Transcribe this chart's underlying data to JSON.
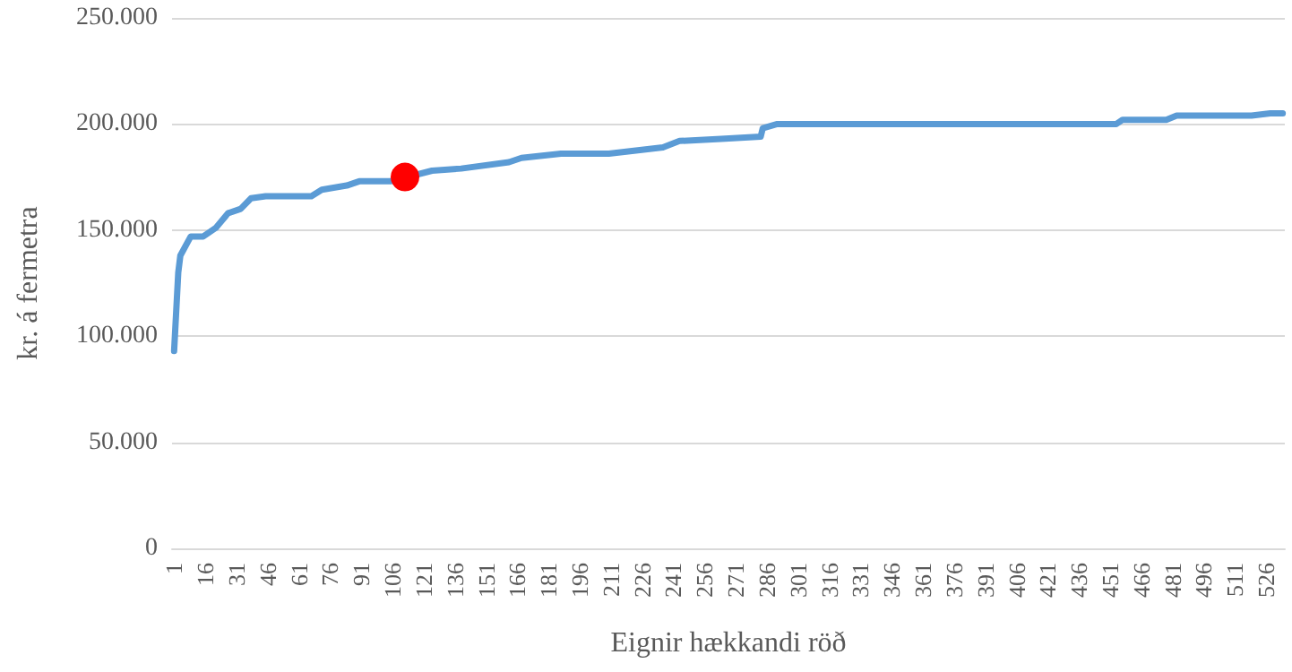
{
  "chart_data": {
    "type": "line",
    "xlabel": "Eignir hækkandi röð",
    "ylabel": "kr. á fermetra",
    "xlim": [
      0,
      535
    ],
    "xticks": [
      1,
      16,
      31,
      46,
      61,
      76,
      91,
      106,
      121,
      136,
      151,
      166,
      181,
      196,
      211,
      226,
      241,
      256,
      271,
      286,
      301,
      316,
      331,
      346,
      361,
      376,
      391,
      406,
      421,
      436,
      451,
      466,
      481,
      496,
      511,
      526
    ],
    "ylim": [
      0,
      250000
    ],
    "yticks": [
      0,
      {
        "value": 50000,
        "label": "50.000"
      },
      {
        "value": 100000,
        "label": "100.000"
      },
      {
        "value": 150000,
        "label": "150.000"
      },
      {
        "value": 200000,
        "label": "200.000"
      },
      {
        "value": 250000,
        "label": "250.000"
      }
    ],
    "grid": "y",
    "series": [
      {
        "color": "#5b9bd5",
        "marker": "none",
        "line_style": "solid",
        "x": [
          1,
          3,
          4,
          9,
          15,
          21,
          27,
          33,
          38,
          45,
          67,
          72,
          84,
          90,
          105,
          125,
          139,
          162,
          168,
          177,
          187,
          210,
          236,
          244,
          264,
          283,
          284,
          291,
          454,
          457,
          478,
          483,
          519,
          528,
          534
        ],
        "values": [
          93000,
          130000,
          138000,
          147000,
          147000,
          151000,
          158000,
          160000,
          165000,
          166000,
          166000,
          169000,
          171000,
          173000,
          173000,
          178000,
          179000,
          182000,
          184000,
          185000,
          186000,
          186000,
          189000,
          192000,
          193000,
          194000,
          198000,
          200000,
          200000,
          202000,
          202000,
          204000,
          204000,
          205000,
          205000
        ]
      },
      {
        "type": "scatter",
        "color": "#ff0000",
        "marker": "circle",
        "x": [
          112
        ],
        "values": [
          175000
        ]
      }
    ]
  }
}
